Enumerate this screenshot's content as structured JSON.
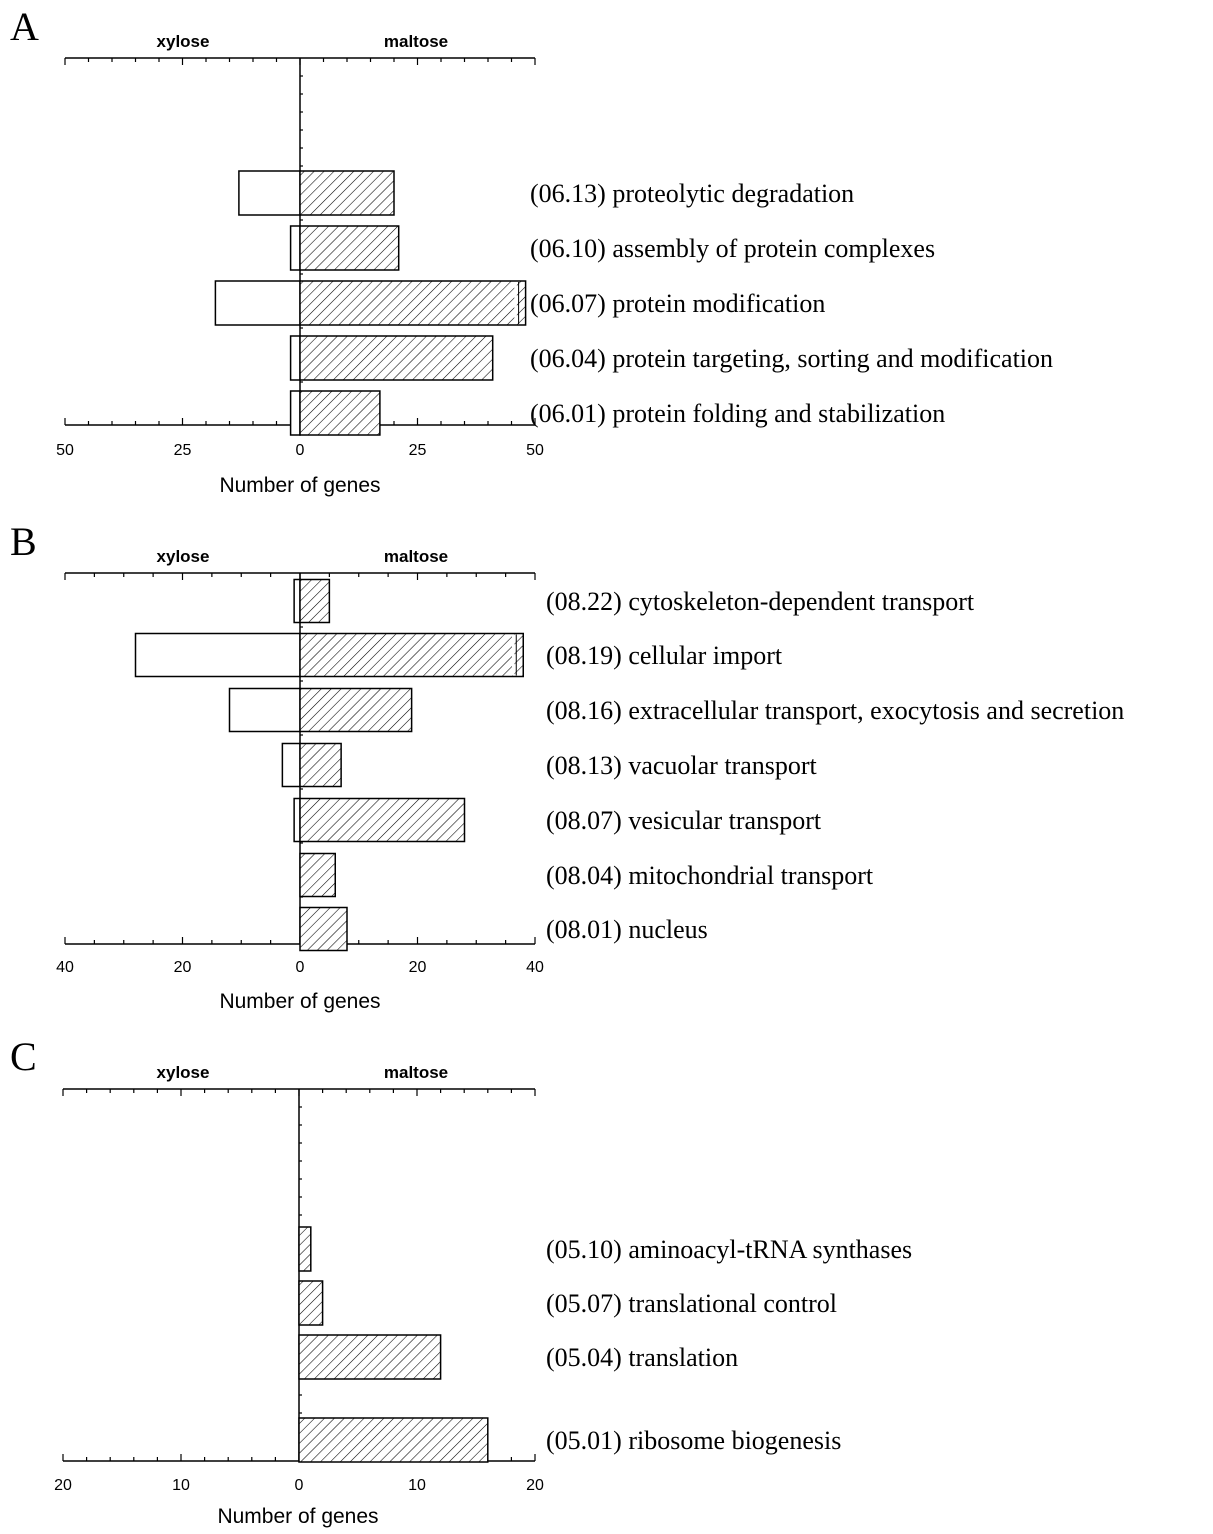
{
  "chart_data": [
    {
      "type": "bar",
      "panel": "A",
      "left_label": "xylose",
      "right_label": "maltose",
      "xlabel": "Number of genes",
      "xlim": [
        -50,
        50
      ],
      "tick_labels": [
        "50",
        "25",
        "0",
        "25",
        "50"
      ],
      "categories": [
        "(06.13) proteolytic degradation",
        "(06.10) assembly of protein complexes",
        "(06.07) protein modification",
        "(06.04) protein targeting, sorting and modification",
        "(06.01) protein folding and stabilization"
      ],
      "series": [
        {
          "name": "xylose",
          "values": [
            13,
            2,
            18,
            2,
            2
          ]
        },
        {
          "name": "maltose",
          "values": [
            20,
            21,
            48,
            41,
            17
          ]
        }
      ],
      "truncated_maltose": [
        false,
        false,
        true,
        false,
        false
      ]
    },
    {
      "type": "bar",
      "panel": "B",
      "left_label": "xylose",
      "right_label": "maltose",
      "xlabel": "Number of genes",
      "xlim": [
        -40,
        40
      ],
      "tick_labels": [
        "40",
        "20",
        "0",
        "20",
        "40"
      ],
      "categories": [
        "(08.22) cytoskeleton-dependent transport",
        "(08.19) cellular import",
        "(08.16) extracellular transport, exocytosis and secretion",
        "(08.13) vacuolar transport",
        "(08.07) vesicular transport",
        "(08.04) mitochondrial transport",
        "(08.01) nucleus"
      ],
      "series": [
        {
          "name": "xylose",
          "values": [
            1,
            28,
            12,
            3,
            1,
            0,
            0
          ]
        },
        {
          "name": "maltose",
          "values": [
            5,
            38,
            19,
            7,
            28,
            6,
            8
          ]
        }
      ],
      "truncated_maltose": [
        false,
        true,
        false,
        false,
        false,
        false,
        false
      ]
    },
    {
      "type": "bar",
      "panel": "C",
      "left_label": "xylose",
      "right_label": "maltose",
      "xlabel": "Number of genes",
      "xlim": [
        -20,
        20
      ],
      "tick_labels": [
        "20",
        "10",
        "0",
        "10",
        "20"
      ],
      "categories": [
        "(05.10) aminoacyl-tRNA synthases",
        "(05.07) translational control",
        "(05.04) translation",
        "(05.01) ribosome biogenesis"
      ],
      "series": [
        {
          "name": "xylose",
          "values": [
            0,
            0,
            0,
            0
          ]
        },
        {
          "name": "maltose",
          "values": [
            1,
            2,
            12,
            16
          ]
        }
      ],
      "truncated_maltose": [
        false,
        false,
        false,
        false
      ]
    }
  ]
}
